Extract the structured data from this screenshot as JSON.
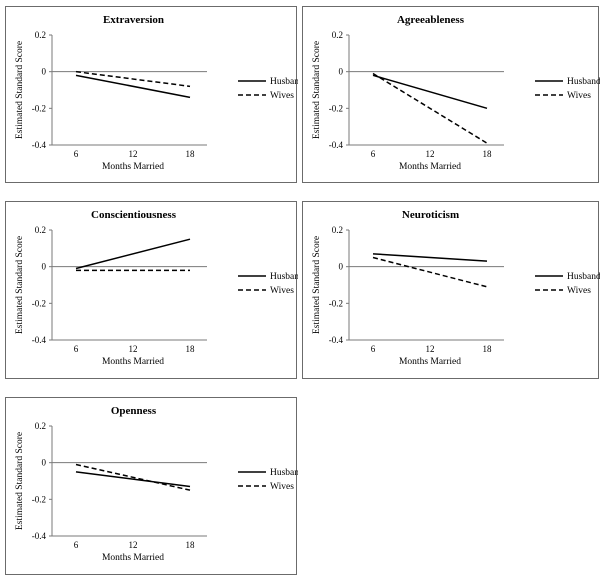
{
  "chart_data": [
    {
      "type": "line",
      "title": "Extraversion",
      "xlabel": "Months Married",
      "ylabel": "Estimated Standard Score",
      "x": [
        6,
        18
      ],
      "xticks": [
        "6",
        "12",
        "18"
      ],
      "xlim": [
        6,
        18
      ],
      "ylim": [
        -0.4,
        0.2
      ],
      "yticks": [
        "0.2",
        "0",
        "-0.2",
        "-0.4"
      ],
      "series": [
        {
          "name": "Husbands",
          "style": "solid",
          "values": [
            -0.02,
            -0.14
          ]
        },
        {
          "name": "Wives",
          "style": "dashed",
          "values": [
            0.0,
            -0.08
          ]
        }
      ]
    },
    {
      "type": "line",
      "title": "Agreeableness",
      "xlabel": "Months Married",
      "ylabel": "Estimated Standard Score",
      "x": [
        6,
        18
      ],
      "xticks": [
        "6",
        "12",
        "18"
      ],
      "xlim": [
        6,
        18
      ],
      "ylim": [
        -0.4,
        0.2
      ],
      "yticks": [
        "0.2",
        "0",
        "-0.2",
        "-0.4"
      ],
      "series": [
        {
          "name": "Husbands",
          "style": "solid",
          "values": [
            -0.02,
            -0.2
          ]
        },
        {
          "name": "Wives",
          "style": "dashed",
          "values": [
            -0.01,
            -0.39
          ]
        }
      ]
    },
    {
      "type": "line",
      "title": "Conscientiousness",
      "xlabel": "Months Married",
      "ylabel": "Estimated Standard Score",
      "x": [
        6,
        18
      ],
      "xticks": [
        "6",
        "12",
        "18"
      ],
      "xlim": [
        6,
        18
      ],
      "ylim": [
        -0.4,
        0.2
      ],
      "yticks": [
        "0.2",
        "0",
        "-0.2",
        "-0.4"
      ],
      "series": [
        {
          "name": "Husbands",
          "style": "solid",
          "values": [
            -0.01,
            0.15
          ]
        },
        {
          "name": "Wives",
          "style": "dashed",
          "values": [
            -0.02,
            -0.02
          ]
        }
      ]
    },
    {
      "type": "line",
      "title": "Neuroticism",
      "xlabel": "Months Married",
      "ylabel": "Estimated Standard Score",
      "x": [
        6,
        18
      ],
      "xticks": [
        "6",
        "12",
        "18"
      ],
      "xlim": [
        6,
        18
      ],
      "ylim": [
        -0.4,
        0.2
      ],
      "yticks": [
        "0.2",
        "0",
        "-0.2",
        "-0.4"
      ],
      "series": [
        {
          "name": "Husbands",
          "style": "solid",
          "values": [
            0.07,
            0.03
          ]
        },
        {
          "name": "Wives",
          "style": "dashed",
          "values": [
            0.05,
            -0.11
          ]
        }
      ]
    },
    {
      "type": "line",
      "title": "Openness",
      "xlabel": "Months Married",
      "ylabel": "Estimated Standard Score",
      "x": [
        6,
        18
      ],
      "xticks": [
        "6",
        "12",
        "18"
      ],
      "xlim": [
        6,
        18
      ],
      "ylim": [
        -0.4,
        0.2
      ],
      "yticks": [
        "0.2",
        "0",
        "-0.2",
        "-0.4"
      ],
      "series": [
        {
          "name": "Husbands",
          "style": "solid",
          "values": [
            -0.05,
            -0.13
          ]
        },
        {
          "name": "Wives",
          "style": "dashed",
          "values": [
            -0.01,
            -0.15
          ]
        }
      ]
    }
  ]
}
